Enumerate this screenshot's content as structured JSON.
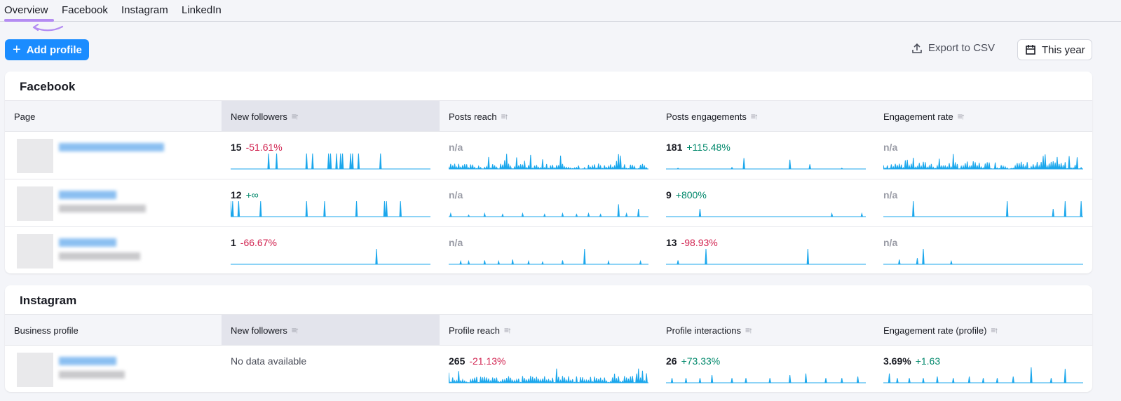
{
  "tabs": [
    {
      "label": "Overview",
      "active": true
    },
    {
      "label": "Facebook"
    },
    {
      "label": "Instagram"
    },
    {
      "label": "LinkedIn"
    }
  ],
  "toolbar": {
    "add_profile": "Add profile",
    "export": "Export to CSV",
    "date_range": "This year"
  },
  "colors": {
    "accent": "#1a8cff",
    "spark": "#1ba7ec",
    "negative": "#d1224f",
    "positive": "#00886b",
    "tab_underline": "#b48cf2"
  },
  "facebook": {
    "title": "Facebook",
    "columns": [
      "Page",
      "New followers",
      "Posts reach",
      "Posts engagements",
      "Engagement rate"
    ],
    "rows": [
      {
        "cells": [
          {
            "value": "15",
            "change": "-51.61%",
            "dir": "neg",
            "spikes": [
              [
                19,
                1
              ],
              [
                23,
                1
              ],
              [
                38,
                1
              ],
              [
                41,
                1
              ],
              [
                49,
                1
              ],
              [
                50,
                1
              ],
              [
                53,
                1
              ],
              [
                55,
                1
              ],
              [
                56,
                1
              ],
              [
                60,
                1
              ],
              [
                61,
                1
              ],
              [
                64,
                1
              ],
              [
                75,
                1
              ]
            ]
          },
          {
            "value": "n/a",
            "dense": 0.35,
            "seed": 3
          },
          {
            "value": "181",
            "change": "+115.48%",
            "dir": "pos",
            "spikes": [
              [
                6,
                0.05
              ],
              [
                33,
                0.1
              ],
              [
                39,
                0.7
              ],
              [
                62,
                0.6
              ],
              [
                72,
                0.3
              ],
              [
                88,
                0.05
              ]
            ]
          },
          {
            "value": "n/a",
            "dense": 0.5,
            "seed": 7
          }
        ]
      },
      {
        "cells": [
          {
            "value": "12",
            "change": "+∞",
            "dir": "pos",
            "spikes": [
              [
                0,
                1
              ],
              [
                1,
                1
              ],
              [
                4,
                1
              ],
              [
                15,
                1
              ],
              [
                38,
                1
              ],
              [
                47,
                1
              ],
              [
                63,
                1
              ],
              [
                77,
                1
              ],
              [
                78,
                1
              ],
              [
                85,
                1
              ]
            ]
          },
          {
            "value": "n/a",
            "spikes": [
              [
                1,
                0.2
              ],
              [
                10,
                0.1
              ],
              [
                18,
                0.2
              ],
              [
                27,
                0.15
              ],
              [
                37,
                0.2
              ],
              [
                48,
                0.15
              ],
              [
                57,
                0.2
              ],
              [
                64,
                0.15
              ],
              [
                70,
                0.2
              ],
              [
                76,
                0.15
              ],
              [
                85,
                0.8
              ],
              [
                89,
                0.2
              ],
              [
                95,
                0.5
              ]
            ]
          },
          {
            "value": "9",
            "change": "+800%",
            "dir": "pos",
            "spikes": [
              [
                17,
                0.5
              ],
              [
                83,
                0.2
              ],
              [
                98,
                0.2
              ]
            ]
          },
          {
            "value": "n/a",
            "spikes": [
              [
                15,
                1
              ],
              [
                62,
                1
              ],
              [
                85,
                0.5
              ],
              [
                91,
                1
              ],
              [
                99,
                1
              ]
            ]
          }
        ]
      },
      {
        "cells": [
          {
            "value": "1",
            "change": "-66.67%",
            "dir": "neg",
            "spikes": [
              [
                73,
                1
              ]
            ]
          },
          {
            "value": "n/a",
            "spikes": [
              [
                6,
                0.2
              ],
              [
                10,
                0.2
              ],
              [
                18,
                0.25
              ],
              [
                25,
                0.2
              ],
              [
                32,
                0.3
              ],
              [
                40,
                0.2
              ],
              [
                47,
                0.15
              ],
              [
                57,
                0.25
              ],
              [
                68,
                1
              ],
              [
                80,
                0.2
              ],
              [
                96,
                0.2
              ]
            ]
          },
          {
            "value": "13",
            "change": "-98.93%",
            "dir": "neg",
            "spikes": [
              [
                6,
                0.25
              ],
              [
                20,
                1
              ],
              [
                71,
                1
              ]
            ]
          },
          {
            "value": "n/a",
            "spikes": [
              [
                8,
                0.3
              ],
              [
                17,
                0.4
              ],
              [
                20,
                1
              ],
              [
                34,
                0.2
              ]
            ]
          }
        ]
      }
    ]
  },
  "instagram": {
    "title": "Instagram",
    "columns": [
      "Business profile",
      "New followers",
      "Profile reach",
      "Profile interactions",
      "Engagement rate (profile)"
    ],
    "rows": [
      {
        "cells": [
          {
            "nodata": "No data available"
          },
          {
            "value": "265",
            "change": "-21.13%",
            "dir": "neg",
            "dense": 0.45,
            "seed": 11
          },
          {
            "value": "26",
            "change": "+73.33%",
            "dir": "pos",
            "spikes": [
              [
                3,
                0.3
              ],
              [
                10,
                0.3
              ],
              [
                17,
                0.3
              ],
              [
                23,
                0.5
              ],
              [
                33,
                0.3
              ],
              [
                40,
                0.3
              ],
              [
                52,
                0.3
              ],
              [
                62,
                0.5
              ],
              [
                70,
                0.6
              ],
              [
                80,
                0.3
              ],
              [
                88,
                0.3
              ],
              [
                96,
                0.4
              ]
            ]
          },
          {
            "value": "3.69%",
            "change": "+1.63",
            "dir": "pos",
            "spikes": [
              [
                3,
                0.6
              ],
              [
                7,
                0.3
              ],
              [
                13,
                0.3
              ],
              [
                20,
                0.3
              ],
              [
                27,
                0.4
              ],
              [
                35,
                0.3
              ],
              [
                43,
                0.4
              ],
              [
                50,
                0.3
              ],
              [
                57,
                0.3
              ],
              [
                65,
                0.4
              ],
              [
                74,
                1
              ],
              [
                84,
                0.3
              ],
              [
                91,
                0.9
              ]
            ]
          }
        ]
      }
    ]
  }
}
